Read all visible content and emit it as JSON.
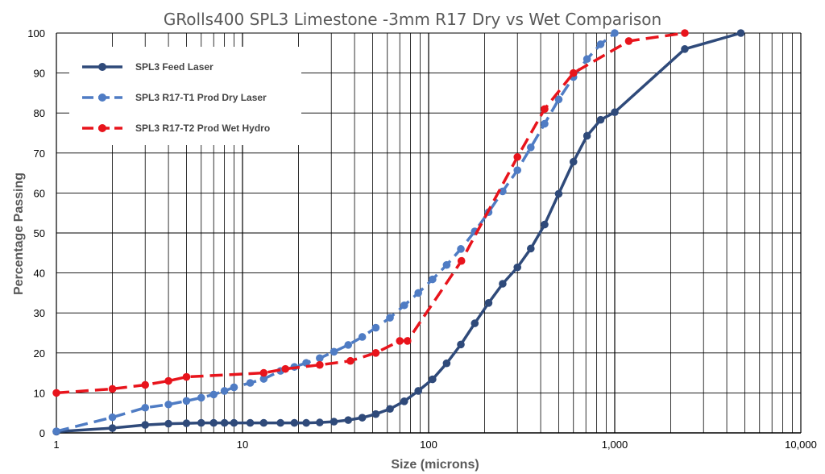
{
  "chart_data": {
    "type": "line",
    "title": "GRolls400 SPL3 Limestone -3mm R17 Dry vs Wet Comparison",
    "xlabel": "Size (microns)",
    "ylabel": "Percentage Passing",
    "x_scale": "log",
    "xlim": [
      1,
      10000
    ],
    "ylim": [
      0,
      100
    ],
    "x_ticks": [
      1,
      10,
      100,
      1000,
      10000
    ],
    "x_tick_labels": [
      "1",
      "10",
      "100",
      "1,000",
      "10,000"
    ],
    "y_ticks": [
      0,
      10,
      20,
      30,
      40,
      50,
      60,
      70,
      80,
      90,
      100
    ],
    "y_tick_labels": [
      "0",
      "10",
      "20",
      "30",
      "40",
      "50",
      "60",
      "70",
      "80",
      "90",
      "100"
    ],
    "grid": true,
    "legend_position": "top-left",
    "series": [
      {
        "name": "SPL3 Feed Laser",
        "color": "#2F4A7A",
        "line_style": "solid",
        "points": [
          [
            1,
            0.3
          ],
          [
            2,
            1.2
          ],
          [
            3,
            2.0
          ],
          [
            4,
            2.3
          ],
          [
            5,
            2.4
          ],
          [
            6,
            2.5
          ],
          [
            7,
            2.5
          ],
          [
            8,
            2.5
          ],
          [
            9,
            2.5
          ],
          [
            11,
            2.5
          ],
          [
            13,
            2.5
          ],
          [
            16,
            2.5
          ],
          [
            19,
            2.5
          ],
          [
            22,
            2.5
          ],
          [
            26,
            2.6
          ],
          [
            31,
            2.8
          ],
          [
            37,
            3.2
          ],
          [
            44,
            3.8
          ],
          [
            52,
            4.7
          ],
          [
            62,
            6.0
          ],
          [
            74,
            7.9
          ],
          [
            88,
            10.5
          ],
          [
            105,
            13.4
          ],
          [
            125,
            17.4
          ],
          [
            149,
            22.1
          ],
          [
            177,
            27.4
          ],
          [
            210,
            32.5
          ],
          [
            250,
            37.3
          ],
          [
            300,
            41.4
          ],
          [
            354,
            46.1
          ],
          [
            420,
            52.1
          ],
          [
            500,
            59.8
          ],
          [
            600,
            67.8
          ],
          [
            710,
            74.3
          ],
          [
            840,
            78.3
          ],
          [
            1000,
            80.2
          ],
          [
            2380,
            96.0
          ],
          [
            4760,
            100
          ]
        ]
      },
      {
        "name": "SPL3 R17-T1 Prod Dry Laser",
        "color": "#4F7CC4",
        "line_style": "dashed",
        "points": [
          [
            1,
            0.4
          ],
          [
            2,
            3.9
          ],
          [
            3,
            6.3
          ],
          [
            4,
            7.1
          ],
          [
            5,
            8.0
          ],
          [
            6,
            8.8
          ],
          [
            7,
            9.6
          ],
          [
            8,
            10.5
          ],
          [
            9,
            11.4
          ],
          [
            11,
            12.5
          ],
          [
            13,
            13.5
          ],
          [
            16,
            15.5
          ],
          [
            19,
            16.5
          ],
          [
            22,
            17.5
          ],
          [
            26,
            18.7
          ],
          [
            31,
            20.3
          ],
          [
            37,
            22.0
          ],
          [
            44,
            24.0
          ],
          [
            52,
            26.3
          ],
          [
            62,
            28.8
          ],
          [
            74,
            31.9
          ],
          [
            88,
            35.0
          ],
          [
            105,
            38.4
          ],
          [
            125,
            42.0
          ],
          [
            149,
            46.0
          ],
          [
            177,
            50.4
          ],
          [
            210,
            55.2
          ],
          [
            250,
            60.4
          ],
          [
            300,
            65.7
          ],
          [
            354,
            71.4
          ],
          [
            420,
            77.3
          ],
          [
            500,
            83.4
          ],
          [
            600,
            89.0
          ],
          [
            710,
            93.5
          ],
          [
            840,
            97.2
          ],
          [
            1000,
            100
          ]
        ]
      },
      {
        "name": "SPL3 R17-T2 Prod Wet Hydro",
        "color": "#E8141C",
        "line_style": "dashed",
        "points": [
          [
            1,
            10.0
          ],
          [
            2,
            11.0
          ],
          [
            3,
            12.0
          ],
          [
            4,
            13.0
          ],
          [
            5,
            14.0
          ],
          [
            13,
            15.0
          ],
          [
            17,
            16.0
          ],
          [
            26,
            17.0
          ],
          [
            38,
            18.0
          ],
          [
            52,
            20.0
          ],
          [
            70,
            23.0
          ],
          [
            77,
            23.0
          ],
          [
            150,
            43.0
          ],
          [
            300,
            69.0
          ],
          [
            420,
            81.0
          ],
          [
            600,
            90.0
          ],
          [
            1190,
            98.0
          ],
          [
            2380,
            100
          ]
        ]
      }
    ]
  }
}
